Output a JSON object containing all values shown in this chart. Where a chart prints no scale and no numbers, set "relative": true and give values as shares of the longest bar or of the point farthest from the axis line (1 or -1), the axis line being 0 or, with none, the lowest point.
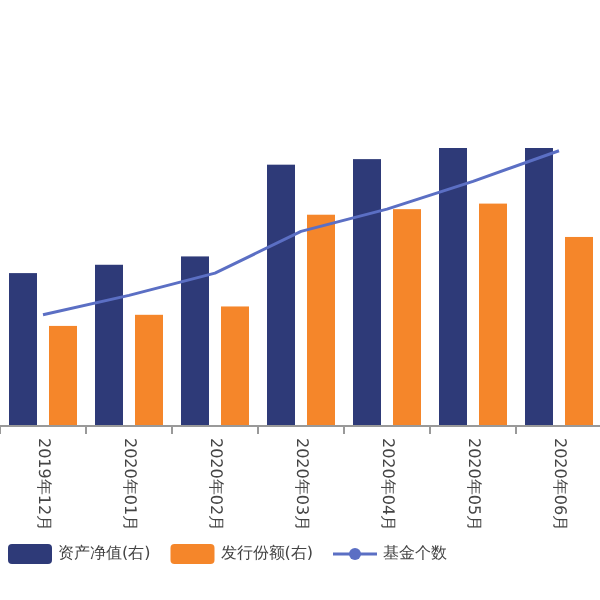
{
  "chart_data": {
    "type": "bar",
    "relative": true,
    "legend": "bottom",
    "categories": [
      "2019年12月",
      "2020年01月",
      "2020年02月",
      "2020年03月",
      "2020年04月",
      "2020年05月",
      "2020年06月"
    ],
    "series": [
      {
        "name": "资产净值(右)",
        "color": "#2e3a78",
        "values": [
          0.55,
          0.58,
          0.61,
          0.94,
          0.96,
          1,
          1
        ]
      },
      {
        "name": "发行份额(右)",
        "color": "#f5862a",
        "values": [
          0.36,
          0.4,
          0.43,
          0.76,
          0.78,
          0.8,
          0.68
        ]
      },
      {
        "name": "基金个数",
        "type": "line",
        "color": "#5b6fc4",
        "values": [
          0.4,
          0.47,
          0.55,
          0.7,
          0.78,
          0.88,
          0.99
        ]
      }
    ]
  }
}
